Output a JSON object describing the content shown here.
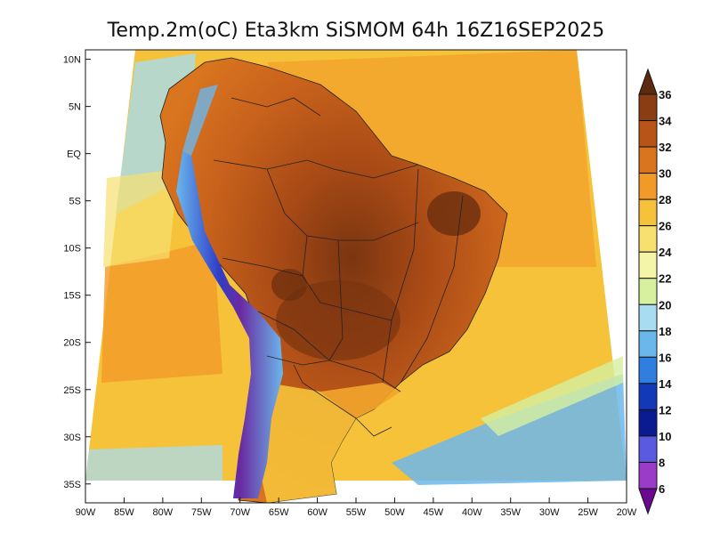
{
  "title": "Temp.2m(oC) Eta3km SiSMOM 64h 16Z16SEP2025",
  "map": {
    "lon_range": [
      -90,
      -20
    ],
    "lat_range": [
      -37,
      11
    ],
    "lat_labels": [
      "10N",
      "5N",
      "EQ",
      "5S",
      "10S",
      "15S",
      "20S",
      "25S",
      "30S",
      "35S"
    ],
    "lat_values": [
      10,
      5,
      0,
      -5,
      -10,
      -15,
      -20,
      -25,
      -30,
      -35
    ],
    "lon_labels": [
      "90W",
      "85W",
      "80W",
      "75W",
      "70W",
      "65W",
      "60W",
      "55W",
      "50W",
      "45W",
      "40W",
      "35W",
      "30W",
      "25W",
      "20W"
    ],
    "lon_values": [
      -90,
      -85,
      -80,
      -75,
      -70,
      -65,
      -60,
      -55,
      -50,
      -45,
      -40,
      -35,
      -30,
      -25,
      -20
    ],
    "ocean_color": "#f5d040",
    "land_color": "#d9741f"
  },
  "colorbar": {
    "labels": [
      "36",
      "34",
      "32",
      "30",
      "28",
      "26",
      "24",
      "22",
      "20",
      "18",
      "16",
      "14",
      "12",
      "10",
      "8",
      "6"
    ],
    "colors": [
      "#5c2a0e",
      "#8a3c12",
      "#b85418",
      "#d9741f",
      "#f29a28",
      "#f5c23a",
      "#f7e070",
      "#f4f5a8",
      "#d6f0a0",
      "#a8dcf0",
      "#6bb7ec",
      "#2f7ee0",
      "#1239b8",
      "#0a1a90",
      "#5a5ae0",
      "#9a3cc8",
      "#6a0a90"
    ]
  }
}
